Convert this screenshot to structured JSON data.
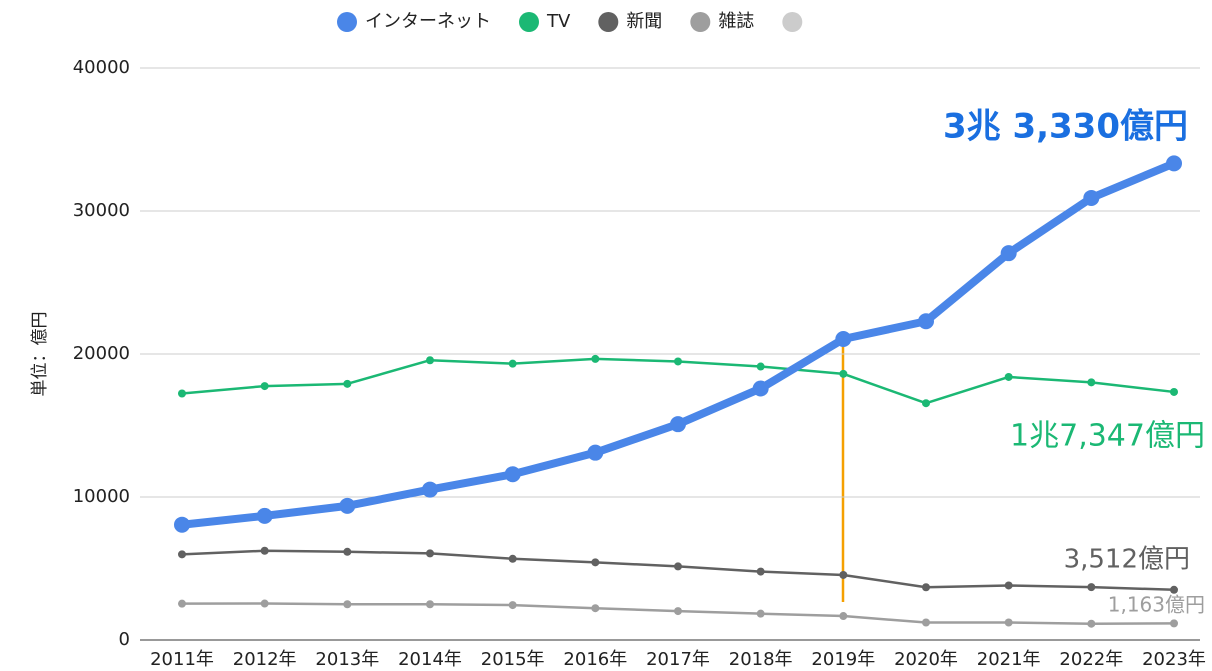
{
  "chart_data": {
    "type": "line",
    "y_label": "単位：億円",
    "categories": [
      "2011年",
      "2012年",
      "2013年",
      "2014年",
      "2015年",
      "2016年",
      "2017年",
      "2018年",
      "2019年",
      "2020年",
      "2021年",
      "2022年",
      "2023年"
    ],
    "series": [
      {
        "name": "インターネット",
        "color": "#4a86e8",
        "values": [
          8062,
          8680,
          9381,
          10519,
          11594,
          13100,
          15094,
          17589,
          21048,
          22290,
          27052,
          30912,
          33330
        ]
      },
      {
        "name": "TV",
        "color": "#1bb874",
        "values": [
          17237,
          17757,
          17913,
          19564,
          19323,
          19657,
          19478,
          19123,
          18612,
          16559,
          18393,
          18019,
          17347
        ]
      },
      {
        "name": "新聞",
        "color": "#616161",
        "values": [
          5990,
          6242,
          6170,
          6057,
          5679,
          5431,
          5147,
          4784,
          4547,
          3688,
          3815,
          3697,
          3512
        ]
      },
      {
        "name": "雑誌",
        "color": "#9e9e9e",
        "values": [
          2542,
          2551,
          2499,
          2500,
          2443,
          2223,
          2023,
          1841,
          1675,
          1223,
          1224,
          1140,
          1163
        ]
      },
      {
        "name": null,
        "color": "#cccccc",
        "values": [
          null,
          null,
          null,
          null,
          null,
          null,
          null,
          null,
          null,
          null,
          null,
          null,
          null
        ]
      }
    ],
    "ylim": [
      0,
      40000
    ],
    "yticks": [
      0,
      10000,
      20000,
      30000,
      40000
    ],
    "grid": true,
    "legend": "top",
    "annotations": [
      {
        "text": "3兆 3,330億円",
        "color": "#1a6fe0"
      },
      {
        "text": "1兆7,347億円",
        "color": "#1bb874"
      },
      {
        "text": "3,512億円",
        "color": "#616161"
      },
      {
        "text": "1,163億円",
        "color": "#9e9e9e"
      }
    ]
  }
}
